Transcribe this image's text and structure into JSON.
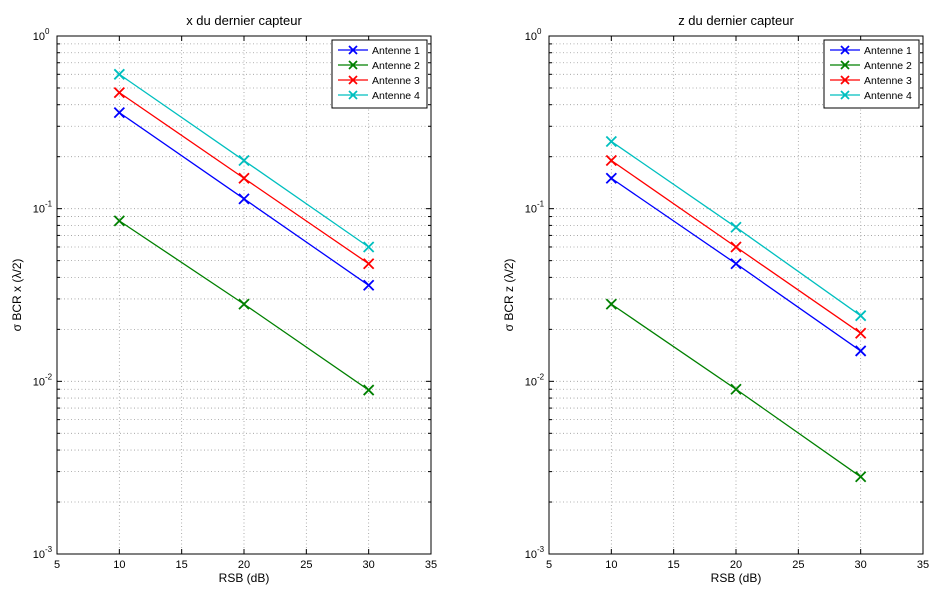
{
  "figure": {
    "background": "#ffffff"
  },
  "chart_data": [
    {
      "type": "line",
      "title": "x du dernier capteur",
      "xlabel": "RSB (dB)",
      "ylabel": "σ BCR x (λ/2)",
      "xlim": [
        5,
        35
      ],
      "ylim": [
        0.001,
        1
      ],
      "yscale": "log",
      "xticks": [
        "5",
        "10",
        "15",
        "20",
        "25",
        "30",
        "35"
      ],
      "yticks": [
        {
          "base": "10",
          "exp": "-3"
        },
        {
          "base": "10",
          "exp": "-2"
        },
        {
          "base": "10",
          "exp": "-1"
        },
        {
          "base": "10",
          "exp": "0"
        }
      ],
      "grid": true,
      "legend": "top-right",
      "marker": "x",
      "x": [
        10,
        20,
        30
      ],
      "series": [
        {
          "name": "Antenne 1",
          "color": "#0000ff",
          "values": [
            0.36,
            0.114,
            0.036
          ]
        },
        {
          "name": "Antenne 2",
          "color": "#008000",
          "values": [
            0.085,
            0.028,
            0.0089
          ]
        },
        {
          "name": "Antenne 3",
          "color": "#ff0000",
          "values": [
            0.47,
            0.15,
            0.048
          ]
        },
        {
          "name": "Antenne 4",
          "color": "#00bfbf",
          "values": [
            0.6,
            0.19,
            0.06
          ]
        }
      ]
    },
    {
      "type": "line",
      "title": "z du dernier capteur",
      "xlabel": "RSB (dB)",
      "ylabel": "σ BCR z (λ/2)",
      "xlim": [
        5,
        35
      ],
      "ylim": [
        0.001,
        1
      ],
      "yscale": "log",
      "xticks": [
        "5",
        "10",
        "15",
        "20",
        "25",
        "30",
        "35"
      ],
      "yticks": [
        {
          "base": "10",
          "exp": "-3"
        },
        {
          "base": "10",
          "exp": "-2"
        },
        {
          "base": "10",
          "exp": "-1"
        },
        {
          "base": "10",
          "exp": "0"
        }
      ],
      "grid": true,
      "legend": "top-right",
      "marker": "x",
      "x": [
        10,
        20,
        30
      ],
      "series": [
        {
          "name": "Antenne 1",
          "color": "#0000ff",
          "values": [
            0.15,
            0.048,
            0.015
          ]
        },
        {
          "name": "Antenne 2",
          "color": "#008000",
          "values": [
            0.028,
            0.009,
            0.0028
          ]
        },
        {
          "name": "Antenne 3",
          "color": "#ff0000",
          "values": [
            0.19,
            0.06,
            0.019
          ]
        },
        {
          "name": "Antenne 4",
          "color": "#00bfbf",
          "values": [
            0.245,
            0.078,
            0.024
          ]
        }
      ]
    }
  ]
}
